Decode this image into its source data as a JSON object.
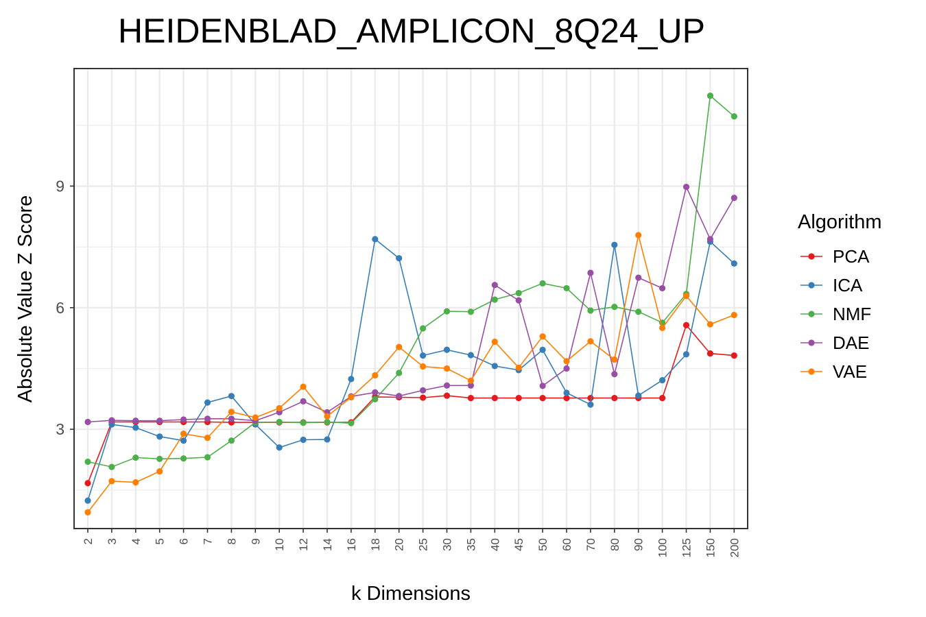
{
  "chart_data": {
    "type": "line",
    "title": "HEIDENBLAD_AMPLICON_8Q24_UP",
    "xlabel": "k Dimensions",
    "ylabel": "Absolute Value Z Score",
    "categories": [
      "2",
      "3",
      "4",
      "5",
      "6",
      "7",
      "8",
      "9",
      "10",
      "12",
      "14",
      "16",
      "18",
      "20",
      "25",
      "30",
      "35",
      "40",
      "45",
      "50",
      "60",
      "70",
      "80",
      "90",
      "100",
      "125",
      "150",
      "200"
    ],
    "y_ticks": [
      3,
      6,
      9
    ],
    "ylim": [
      0.55,
      11.9
    ],
    "grid": true,
    "legend": {
      "title": "Algorithm",
      "position": "right"
    },
    "series": [
      {
        "name": "PCA",
        "color": "#E41A1C",
        "values": [
          1.67,
          3.18,
          3.18,
          3.18,
          3.18,
          3.18,
          3.17,
          3.17,
          3.17,
          3.17,
          3.17,
          3.17,
          3.8,
          3.79,
          3.78,
          3.83,
          3.77,
          3.77,
          3.77,
          3.77,
          3.77,
          3.77,
          3.77,
          3.77,
          3.77,
          5.57,
          4.87,
          4.82
        ]
      },
      {
        "name": "ICA",
        "color": "#377EB8",
        "values": [
          1.24,
          3.12,
          3.04,
          2.82,
          2.72,
          3.66,
          3.82,
          3.12,
          2.55,
          2.74,
          2.75,
          4.24,
          7.69,
          7.22,
          4.82,
          4.96,
          4.83,
          4.56,
          4.46,
          4.96,
          3.9,
          3.61,
          7.55,
          3.83,
          4.21,
          4.85,
          7.63,
          7.09
        ]
      },
      {
        "name": "NMF",
        "color": "#4DAF4A",
        "values": [
          2.2,
          2.07,
          2.3,
          2.27,
          2.28,
          2.31,
          2.72,
          3.17,
          3.18,
          3.16,
          3.18,
          3.15,
          3.74,
          4.39,
          5.49,
          5.91,
          5.9,
          6.2,
          6.36,
          6.6,
          6.48,
          5.93,
          6.02,
          5.9,
          5.63,
          6.34,
          11.23,
          10.72
        ]
      },
      {
        "name": "DAE",
        "color": "#984EA3",
        "values": [
          3.18,
          3.22,
          3.21,
          3.21,
          3.24,
          3.26,
          3.26,
          3.21,
          3.42,
          3.69,
          3.42,
          3.81,
          3.91,
          3.82,
          3.96,
          4.08,
          4.08,
          6.56,
          6.18,
          4.07,
          4.5,
          6.86,
          4.36,
          6.74,
          6.48,
          8.98,
          7.69,
          8.71
        ]
      },
      {
        "name": "VAE",
        "color": "#FF7F00",
        "values": [
          0.95,
          1.72,
          1.69,
          1.96,
          2.89,
          2.79,
          3.43,
          3.29,
          3.52,
          4.05,
          3.32,
          3.79,
          4.33,
          5.03,
          4.55,
          4.5,
          4.2,
          5.16,
          4.52,
          5.29,
          4.68,
          5.17,
          4.72,
          7.79,
          5.5,
          6.29,
          5.59,
          5.82
        ]
      }
    ]
  }
}
